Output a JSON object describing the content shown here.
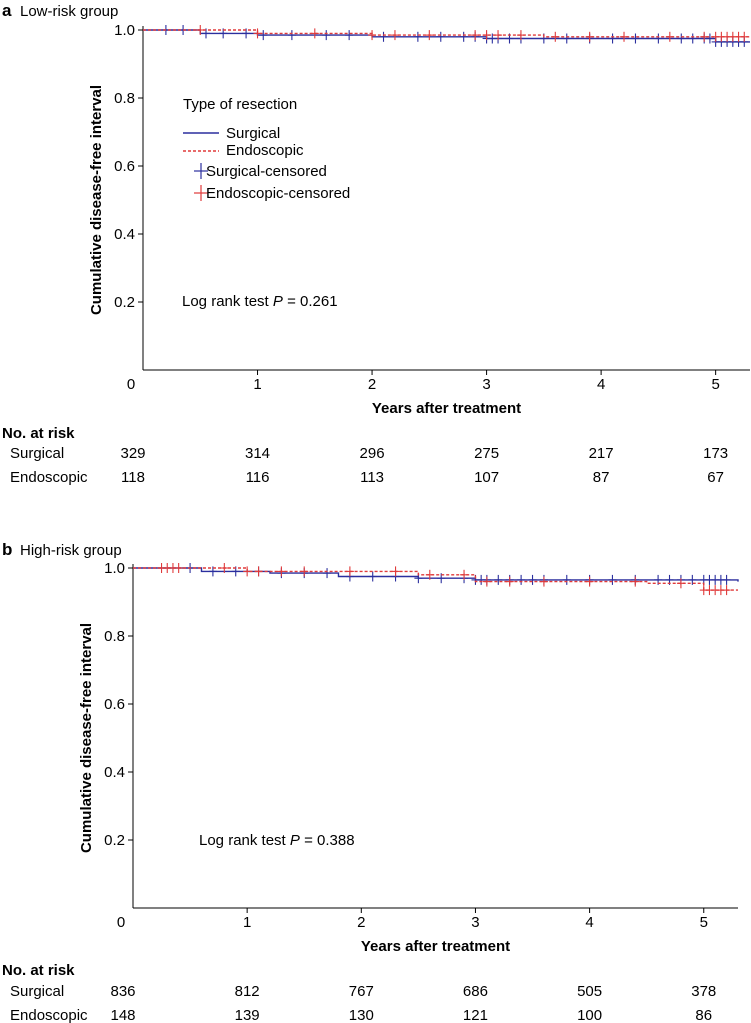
{
  "chart_data": [
    {
      "type": "line",
      "panel_letter": "a",
      "title": "Low-risk group",
      "xlabel": "Years after treatment",
      "ylabel": "Cumulative disease-free interval",
      "xlim": [
        0,
        5.3
      ],
      "ylim": [
        0,
        1.0
      ],
      "xticks": [
        "0",
        "1",
        "2",
        "3",
        "4",
        "5"
      ],
      "yticks": [
        "0.2",
        "0.4",
        "0.6",
        "0.8",
        "1.0"
      ],
      "legend": {
        "title": "Type of resection",
        "items": [
          "Surgical",
          "Endoscopic",
          "Surgical-censored",
          "Endoscopic-censored"
        ]
      },
      "annotation": {
        "prefix": "Log rank test ",
        "p_symbol": "P",
        "value": " = 0.261"
      },
      "series": [
        {
          "name": "Surgical",
          "color": "#2b2f9e",
          "step_x": [
            0,
            0.5,
            1.0,
            2.0,
            3.0,
            5.0,
            5.3
          ],
          "step_y": [
            1.0,
            0.99,
            0.985,
            0.98,
            0.975,
            0.965,
            0.965
          ],
          "censored_x": [
            0.2,
            0.35,
            0.55,
            0.7,
            0.9,
            1.05,
            1.3,
            1.6,
            1.8,
            2.1,
            2.4,
            2.6,
            2.8,
            2.9,
            3.0,
            3.05,
            3.1,
            3.2,
            3.3,
            3.5,
            3.7,
            3.9,
            4.1,
            4.3,
            4.5,
            4.7,
            4.8,
            4.9,
            4.95,
            5.0,
            5.05,
            5.1,
            5.15,
            5.2,
            5.25
          ]
        },
        {
          "name": "Endoscopic",
          "color": "#e03a3a",
          "step_x": [
            0,
            1.0,
            2.0,
            3.5,
            5.3
          ],
          "step_y": [
            1.0,
            0.99,
            0.985,
            0.98,
            0.98
          ],
          "censored_x": [
            0.5,
            1.0,
            1.5,
            2.0,
            2.2,
            2.5,
            2.9,
            3.0,
            3.1,
            3.3,
            3.6,
            3.9,
            4.2,
            4.6,
            4.9,
            5.0,
            5.05,
            5.1,
            5.15,
            5.2,
            5.25
          ]
        }
      ],
      "risk_table": {
        "header": "No. at risk",
        "rows": [
          {
            "label": "Surgical",
            "values": [
              "329",
              "314",
              "296",
              "275",
              "217",
              "173"
            ]
          },
          {
            "label": "Endoscopic",
            "values": [
              "118",
              "116",
              "113",
              "107",
              "87",
              "67"
            ]
          }
        ]
      }
    },
    {
      "type": "line",
      "panel_letter": "b",
      "title": "High-risk group",
      "xlabel": "Years after treatment",
      "ylabel": "Cumulative disease-free interval",
      "xlim": [
        0,
        5.3
      ],
      "ylim": [
        0,
        1.0
      ],
      "xticks": [
        "0",
        "1",
        "2",
        "3",
        "4",
        "5"
      ],
      "yticks": [
        "0.2",
        "0.4",
        "0.6",
        "0.8",
        "1.0"
      ],
      "annotation": {
        "prefix": "Log rank test ",
        "p_symbol": "P",
        "value": " = 0.388"
      },
      "series": [
        {
          "name": "Surgical",
          "color": "#2b2f9e",
          "step_x": [
            0,
            0.6,
            1.2,
            1.8,
            2.5,
            3.0,
            5.3
          ],
          "step_y": [
            1.0,
            0.99,
            0.985,
            0.975,
            0.97,
            0.965,
            0.96
          ],
          "censored_x": [
            0.5,
            0.7,
            0.9,
            1.1,
            1.3,
            1.5,
            1.7,
            1.9,
            2.1,
            2.3,
            2.5,
            2.7,
            2.9,
            3.0,
            3.05,
            3.1,
            3.2,
            3.3,
            3.4,
            3.5,
            3.6,
            3.8,
            4.0,
            4.2,
            4.4,
            4.6,
            4.7,
            4.8,
            4.9,
            5.0,
            5.05,
            5.1,
            5.15,
            5.2
          ]
        },
        {
          "name": "Endoscopic",
          "color": "#e03a3a",
          "step_x": [
            0,
            1.0,
            2.5,
            3.0,
            4.5,
            5.0,
            5.3
          ],
          "step_y": [
            1.0,
            0.99,
            0.98,
            0.96,
            0.955,
            0.935,
            0.935
          ],
          "censored_x": [
            0.25,
            0.3,
            0.35,
            0.4,
            0.8,
            1.0,
            1.1,
            1.3,
            1.5,
            1.9,
            2.3,
            2.6,
            2.9,
            3.1,
            3.3,
            3.6,
            4.0,
            4.4,
            4.8,
            5.0,
            5.05,
            5.1,
            5.15,
            5.2
          ]
        }
      ],
      "risk_table": {
        "header": "No. at risk",
        "rows": [
          {
            "label": "Surgical",
            "values": [
              "836",
              "812",
              "767",
              "686",
              "505",
              "378"
            ]
          },
          {
            "label": "Endoscopic",
            "values": [
              "148",
              "139",
              "130",
              "121",
              "100",
              "86"
            ]
          }
        ]
      }
    }
  ]
}
